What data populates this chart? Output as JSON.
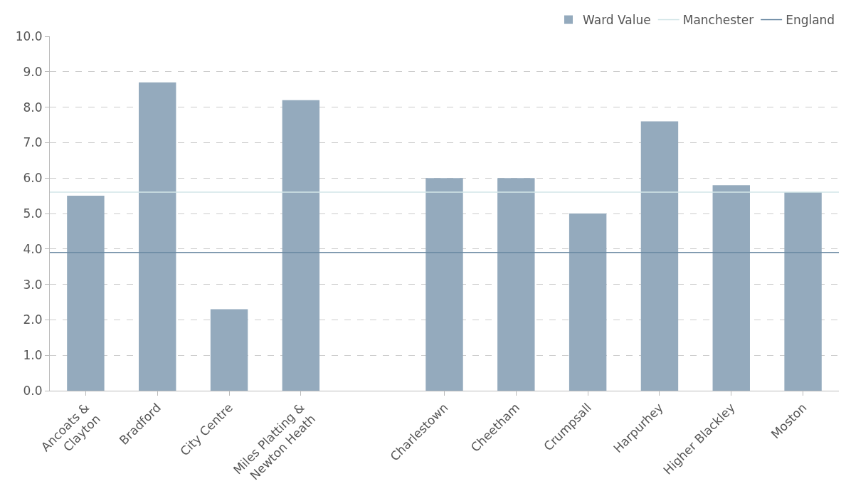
{
  "chart_data": {
    "type": "bar",
    "categories": [
      "Ancoats & Clayton",
      "Bradford",
      "City Centre",
      "Miles Platting & Newton Heath",
      null,
      "Charlestown",
      "Cheetham",
      "Crumpsall",
      "Harpurhey",
      "Higher Blackley",
      "Moston"
    ],
    "series": [
      {
        "name": "Ward Value",
        "color": "#94aabd",
        "values": [
          5.5,
          8.7,
          2.3,
          8.2,
          null,
          6.0,
          6.0,
          5.0,
          7.6,
          5.8,
          5.6
        ]
      }
    ],
    "ref_lines": [
      {
        "axis": "y",
        "value": 5.6,
        "label": "Manchester",
        "color": "#d3e6e8"
      },
      {
        "axis": "y",
        "value": 3.9,
        "label": "England",
        "color": "#6b8aa3"
      }
    ],
    "ylim": [
      0,
      10
    ],
    "yticks": [
      {
        "value": 0,
        "label": "0.0"
      },
      {
        "value": 1,
        "label": "1.0"
      },
      {
        "value": 2,
        "label": "2.0"
      },
      {
        "value": 3,
        "label": "3.0"
      },
      {
        "value": 4,
        "label": "4.0"
      },
      {
        "value": 5,
        "label": "5.0"
      },
      {
        "value": 6,
        "label": "6.0"
      },
      {
        "value": 7,
        "label": "7.0"
      },
      {
        "value": 8,
        "label": "8.0"
      },
      {
        "value": 9,
        "label": "9.0"
      },
      {
        "value": 10,
        "label": "10.0"
      }
    ],
    "grid": "y",
    "legend": "top right"
  }
}
